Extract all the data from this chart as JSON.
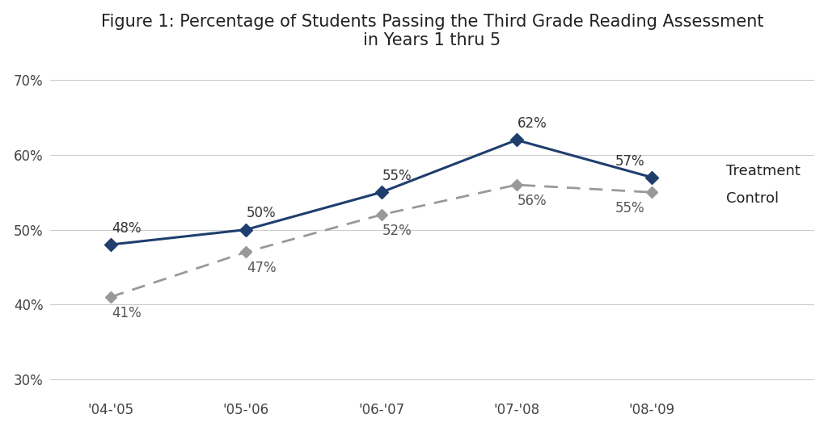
{
  "title": "Figure 1: Percentage of Students Passing the Third Grade Reading Assessment\nin Years 1 thru 5",
  "x_labels": [
    "'04-'05",
    "'05-'06",
    "'06-'07",
    "'07-'08",
    "'08-'09"
  ],
  "x_values": [
    0,
    1,
    2,
    3,
    4
  ],
  "treatment_values": [
    0.48,
    0.5,
    0.55,
    0.62,
    0.57
  ],
  "control_values": [
    0.41,
    0.47,
    0.52,
    0.56,
    0.55
  ],
  "treatment_labels": [
    "48%",
    "50%",
    "55%",
    "62%",
    "57%"
  ],
  "control_labels": [
    "41%",
    "47%",
    "52%",
    "56%",
    "55%"
  ],
  "treatment_color": "#1f3e6e",
  "control_color": "#999999",
  "background_color": "#ffffff",
  "legend_treatment": "Treatment",
  "legend_control": "Control",
  "ylim": [
    0.28,
    0.72
  ],
  "yticks": [
    0.3,
    0.4,
    0.5,
    0.6,
    0.7
  ],
  "ytick_labels": [
    "30%",
    "40%",
    "50%",
    "60%",
    "70%"
  ],
  "title_fontsize": 15,
  "tick_fontsize": 12,
  "label_fontsize": 12
}
